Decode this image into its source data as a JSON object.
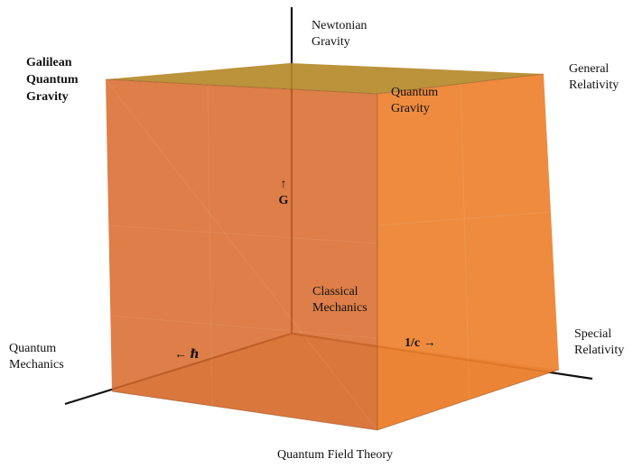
{
  "labels": {
    "newtonian_gravity": "Newtonian\nGravity",
    "galilean_quantum_gravity": "Galilean\nQuantum\nGravity",
    "general_relativity": "General\nRelativity",
    "quantum_gravity": "Quantum\nGravity",
    "g_axis": "↑\nG",
    "classical_mechanics": "Classical\nMechanics",
    "one_over_c_axis": "1/c →",
    "special_relativity": "Special\nRelativity",
    "quantum_mechanics": "Quantum\nMechanics",
    "hbar_axis": "← ℏ",
    "quantum_field_theory": "Quantum Field Theory"
  },
  "colors": {
    "top_face": "#b58a2a",
    "left_face": "#d9692a",
    "right_face": "#ec7b24",
    "bottom_face": "#c7a26a",
    "axis": "#111111"
  }
}
